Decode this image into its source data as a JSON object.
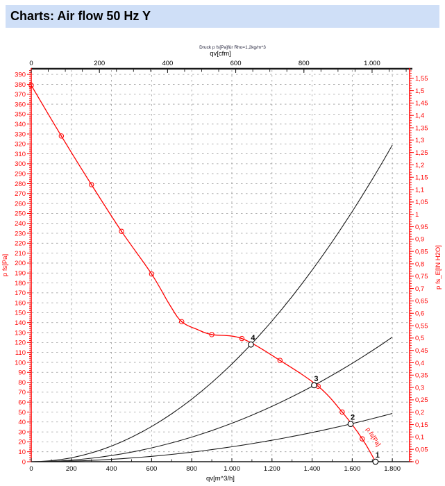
{
  "header": {
    "title": "Charts: Air flow 50 Hz Y"
  },
  "colors": {
    "curve_red": "#ff0000",
    "axis_black": "#1a1a1a",
    "grid_gray": "#9c9c9c",
    "title_band": "#cfdff7",
    "subtitle_text": "#1a1a33"
  },
  "chart_data": {
    "type": "line",
    "title": "Charts: Air flow 50 Hz Y",
    "subtitle": "Druck p fs[Pa]für Rho=1,2kg/m^3",
    "grid": "dashed, horizontal every 10 Pa, vertical every 200 m^3/h",
    "axes": {
      "bottom": {
        "label": "qv[m^3/h]",
        "min": 0,
        "max": 1886,
        "major_step": 200,
        "minor_step": 100,
        "major_ticks": [
          0,
          200,
          400,
          600,
          800,
          1000,
          1200,
          1400,
          1600,
          1800
        ],
        "tick_labels": [
          "0",
          "200",
          "400",
          "600",
          "800",
          "1.000",
          "1.200",
          "1.400",
          "1.600",
          "1.800"
        ]
      },
      "top": {
        "label": "qv[cfm]",
        "min": 0,
        "max": 1110,
        "major_step": 200,
        "minor_step": 50,
        "cfm_to_m3h": 1.699,
        "major_ticks": [
          0,
          200,
          400,
          600,
          800,
          1000
        ],
        "tick_labels": [
          "0",
          "200",
          "400",
          "600",
          "800",
          "1.000"
        ]
      },
      "left": {
        "label": "p fs[Pa]",
        "min": 0,
        "max": 395,
        "major_step": 10,
        "minor_step": 2,
        "major_ticks": [
          0,
          10,
          20,
          30,
          40,
          50,
          60,
          70,
          80,
          90,
          100,
          110,
          120,
          130,
          140,
          150,
          160,
          170,
          180,
          190,
          200,
          210,
          220,
          230,
          240,
          250,
          260,
          270,
          280,
          290,
          300,
          310,
          320,
          330,
          340,
          350,
          360,
          370,
          380,
          390
        ],
        "tick_labels": [
          "0",
          "10",
          "20",
          "30",
          "40",
          "50",
          "60",
          "70",
          "80",
          "90",
          "100",
          "110",
          "120",
          "130",
          "140",
          "150",
          "160",
          "170",
          "180",
          "190",
          "200",
          "210",
          "220",
          "230",
          "240",
          "250",
          "260",
          "270",
          "280",
          "290",
          "300",
          "310",
          "320",
          "330",
          "340",
          "350",
          "360",
          "370",
          "380",
          "390"
        ]
      },
      "right": {
        "label": "p fs_E[IN H2O]",
        "min": 0,
        "max": 1.586,
        "major_step": 0.05,
        "minor_step": 0.01,
        "inh2o_to_pa": 249.08,
        "major_ticks": [
          0,
          0.05,
          0.1,
          0.15,
          0.2,
          0.25,
          0.3,
          0.35,
          0.4,
          0.45,
          0.5,
          0.55,
          0.6,
          0.65,
          0.7,
          0.75,
          0.8,
          0.85,
          0.9,
          0.95,
          1,
          1.05,
          1.1,
          1.15,
          1.2,
          1.25,
          1.3,
          1.35,
          1.4,
          1.45,
          1.5,
          1.55
        ],
        "tick_labels": [
          "0",
          "0,05",
          "0,1",
          "0,15",
          "0,2",
          "0,25",
          "0,3",
          "0,35",
          "0,4",
          "0,45",
          "0,5",
          "0,55",
          "0,6",
          "0,65",
          "0,7",
          "0,75",
          "0,8",
          "0,85",
          "0,9",
          "0,95",
          "1",
          "1,05",
          "1,1",
          "1,15",
          "1,2",
          "1,25",
          "1,3",
          "1,35",
          "1,4",
          "1,45",
          "1,5",
          "1,55"
        ]
      }
    },
    "fan_curve": {
      "name": "p fs vs qv (50 Hz)",
      "inline_label": "p fs[Pa]",
      "points": [
        {
          "q": 0,
          "p": 379,
          "marker": true
        },
        {
          "q": 150,
          "p": 328,
          "marker": true
        },
        {
          "q": 300,
          "p": 279,
          "marker": true
        },
        {
          "q": 450,
          "p": 232,
          "marker": true
        },
        {
          "q": 600,
          "p": 189,
          "marker": true
        },
        {
          "q": 690,
          "p": 158,
          "marker": false
        },
        {
          "q": 750,
          "p": 141,
          "marker": true
        },
        {
          "q": 830,
          "p": 133,
          "marker": false
        },
        {
          "q": 900,
          "p": 128,
          "marker": true
        },
        {
          "q": 1050,
          "p": 124,
          "marker": true
        },
        {
          "q": 1240,
          "p": 102,
          "marker": true
        },
        {
          "q": 1430,
          "p": 76,
          "marker": true
        },
        {
          "q": 1550,
          "p": 50,
          "marker": true
        },
        {
          "q": 1650,
          "p": 23,
          "marker": true
        },
        {
          "q": 1716,
          "p": 0,
          "marker": false
        }
      ]
    },
    "system_curves": [
      {
        "name": "system-curve-through-point-4",
        "k": 9.84e-05,
        "q_start": 0,
        "q_end": 1800
      },
      {
        "name": "system-curve-through-point-3",
        "k": 3.87e-05,
        "q_start": 0,
        "q_end": 1800
      },
      {
        "name": "system-curve-through-point-2",
        "k": 1.5e-05,
        "q_start": 0,
        "q_end": 1800
      }
    ],
    "operating_points": [
      {
        "label": "4",
        "q": 1095,
        "p": 118
      },
      {
        "label": "3",
        "q": 1410,
        "p": 77
      },
      {
        "label": "2",
        "q": 1592,
        "p": 38
      },
      {
        "label": "1",
        "q": 1716,
        "p": 0
      }
    ]
  }
}
